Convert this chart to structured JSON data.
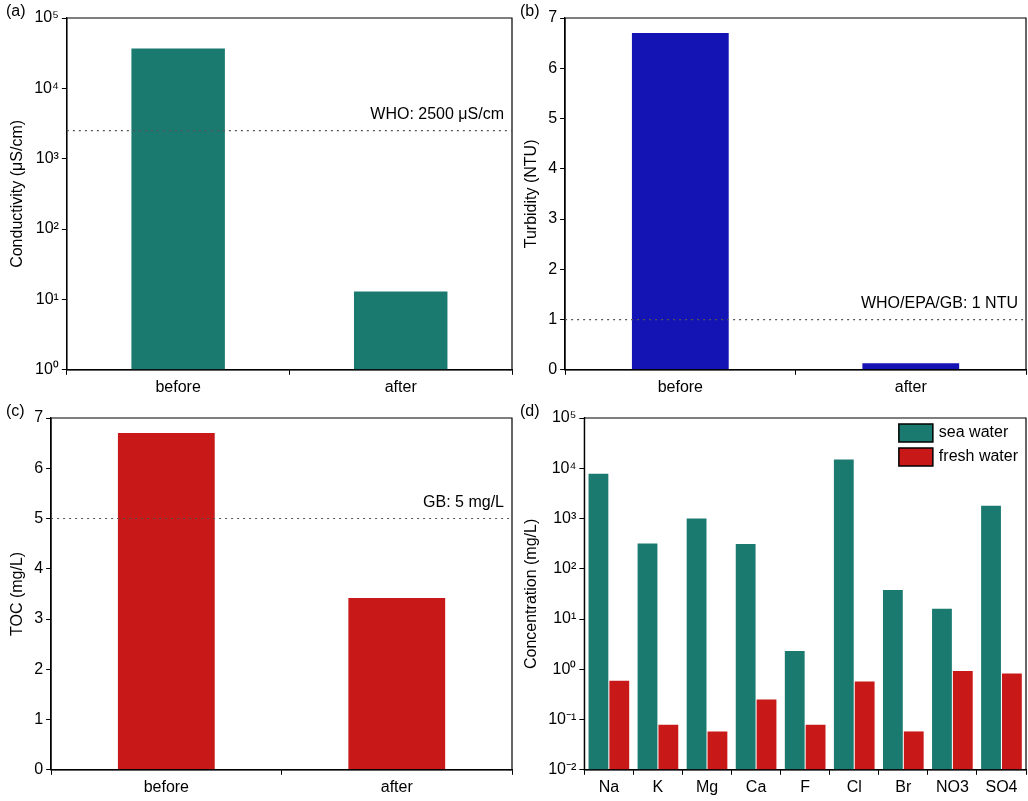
{
  "chart_data": [
    {
      "type": "bar",
      "title": "(a)",
      "ylabel": "Conductivity (μS/cm)",
      "categories": [
        "before",
        "after"
      ],
      "series": [
        {
          "color": "#1a7a70",
          "values": [
            37000,
            13
          ]
        }
      ],
      "log": true,
      "ylim": [
        1,
        100000
      ],
      "yticks": [
        {
          "value": 1,
          "label": "10⁰"
        },
        {
          "value": 10,
          "label": "10¹"
        },
        {
          "value": 100,
          "label": "10²"
        },
        {
          "value": 1000,
          "label": "10³"
        },
        {
          "value": 10000,
          "label": "10⁴"
        },
        {
          "value": 100000,
          "label": "10⁵"
        }
      ],
      "ref_lines": [
        {
          "axis": "y",
          "value": 2500,
          "label": "WHO: 2500 μS/cm",
          "color": "#555555",
          "line_style": "dotted"
        }
      ]
    },
    {
      "type": "bar",
      "title": "(b)",
      "ylabel": "Turbidity (NTU)",
      "categories": [
        "before",
        "after"
      ],
      "series": [
        {
          "color": "#1414b4",
          "values": [
            6.7,
            0.13
          ]
        }
      ],
      "ylim": [
        0,
        7
      ],
      "yticks": [
        0,
        1,
        2,
        3,
        4,
        5,
        6,
        7
      ],
      "ref_lines": [
        {
          "axis": "y",
          "value": 1,
          "label": "WHO/EPA/GB: 1 NTU",
          "color": "#555555",
          "line_style": "dotted"
        }
      ]
    },
    {
      "type": "bar",
      "title": "(c)",
      "ylabel": "TOC (mg/L)",
      "categories": [
        "before",
        "after"
      ],
      "series": [
        {
          "color": "#c81818",
          "values": [
            6.7,
            3.42
          ]
        }
      ],
      "ylim": [
        0,
        7
      ],
      "yticks": [
        0,
        1,
        2,
        3,
        4,
        5,
        6,
        7
      ],
      "ref_lines": [
        {
          "axis": "y",
          "value": 5,
          "label": "GB: 5 mg/L",
          "color": "#555555",
          "line_style": "dotted"
        }
      ]
    },
    {
      "type": "bar",
      "title": "(d)",
      "ylabel": "Concentration (mg/L)",
      "categories": [
        "Na",
        "K",
        "Mg",
        "Ca",
        "F",
        "Cl",
        "Br",
        "NO3",
        "SO4"
      ],
      "series": [
        {
          "name": "sea water",
          "color": "#1a7a70",
          "values": [
            7800,
            320,
            1000,
            310,
            2.3,
            15000,
            38,
            16,
            1800
          ]
        },
        {
          "name": "fresh water",
          "color": "#c81818",
          "values": [
            0.59,
            0.079,
            0.058,
            0.25,
            0.079,
            0.57,
            0.058,
            0.92,
            0.82
          ]
        }
      ],
      "log": true,
      "ylim": [
        0.01,
        100000
      ],
      "yticks": [
        {
          "value": 0.01,
          "label": "10⁻²"
        },
        {
          "value": 0.1,
          "label": "10⁻¹"
        },
        {
          "value": 1,
          "label": "10⁰"
        },
        {
          "value": 10,
          "label": "10¹"
        },
        {
          "value": 100,
          "label": "10²"
        },
        {
          "value": 1000,
          "label": "10³"
        },
        {
          "value": 10000,
          "label": "10⁴"
        },
        {
          "value": 100000,
          "label": "10⁵"
        }
      ],
      "legend": "top right"
    }
  ]
}
